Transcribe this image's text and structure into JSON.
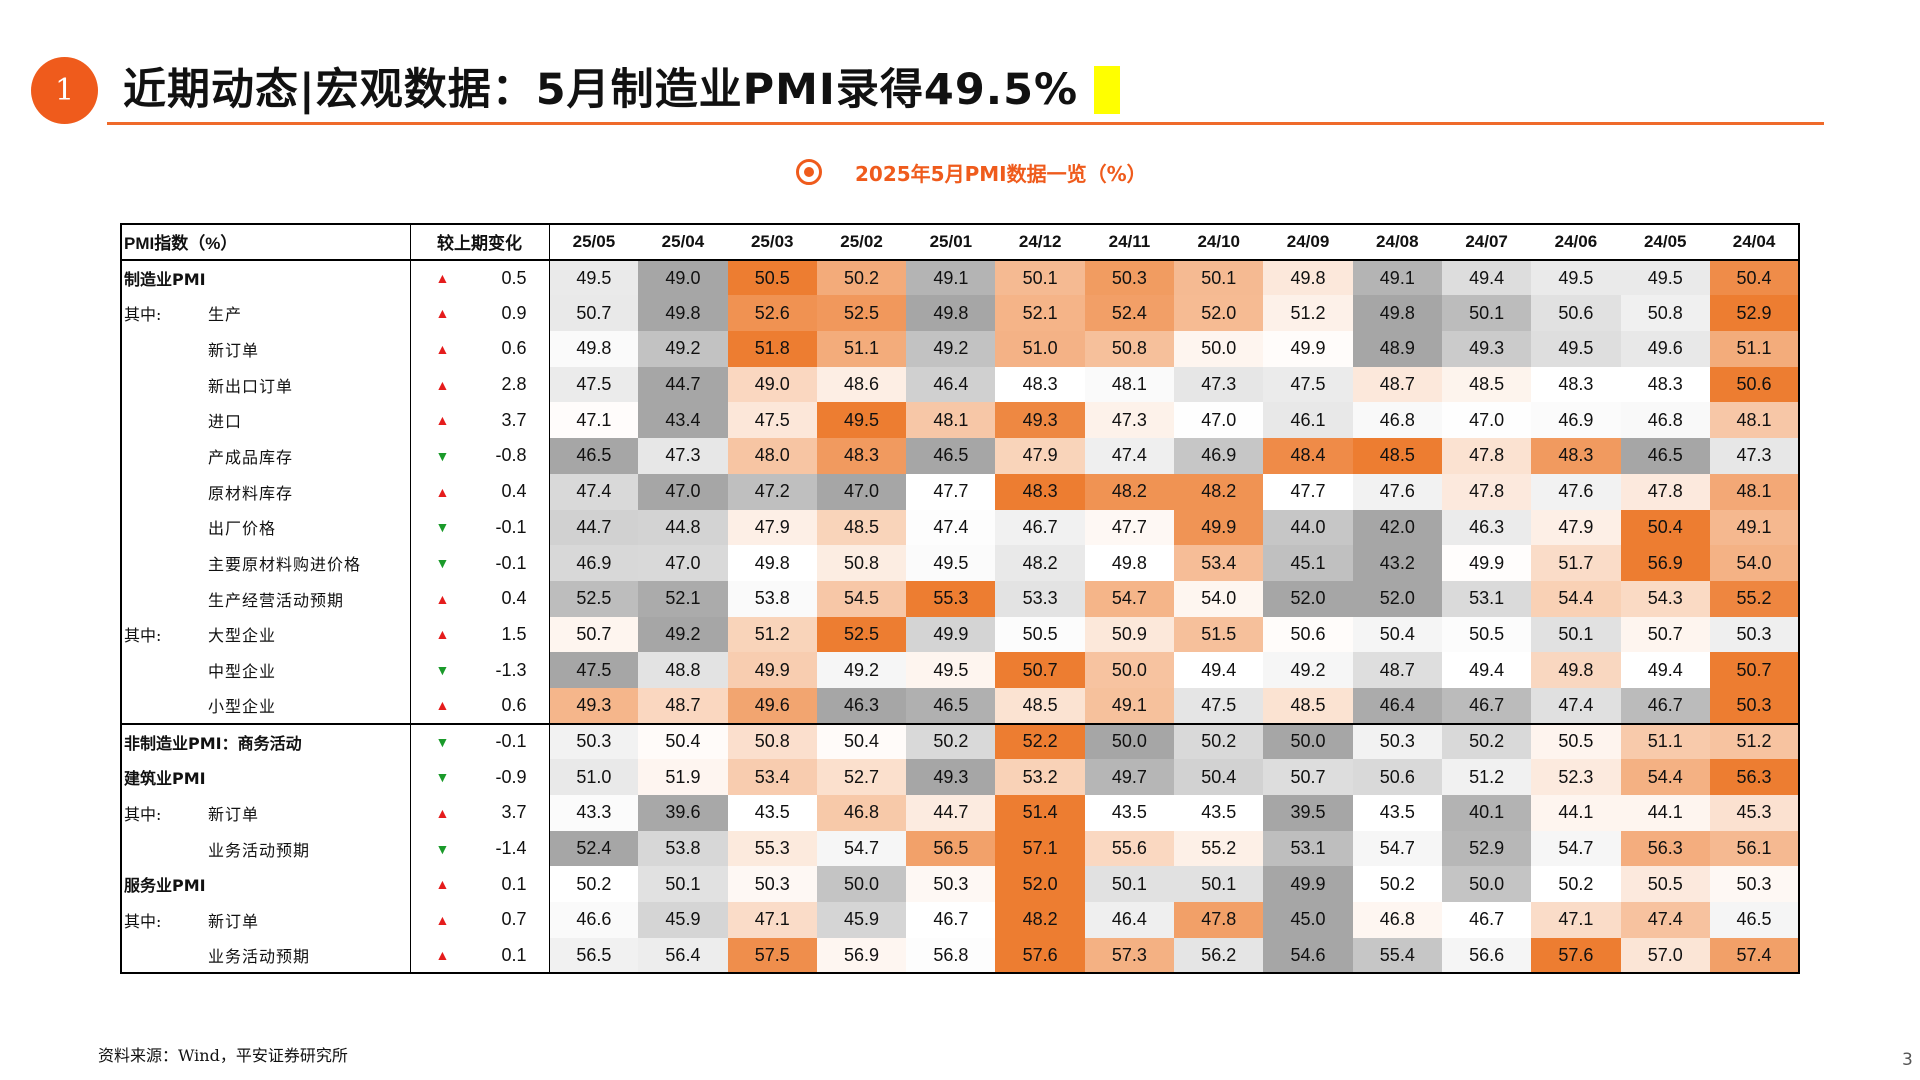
{
  "section_number": "1",
  "title": "近期动态|宏观数据：5月制造业PMI录得49.5%",
  "subtitle": "2025年5月PMI数据一览（%）",
  "table": {
    "header_label": "PMI指数（%）",
    "change_label": "较上期变化",
    "months": [
      "25/05",
      "25/04",
      "25/03",
      "25/02",
      "25/01",
      "24/12",
      "24/11",
      "24/10",
      "24/09",
      "24/08",
      "24/07",
      "24/06",
      "24/05",
      "24/04"
    ],
    "rows": [
      {
        "prefix": "",
        "label": "制造业PMI",
        "bold": true,
        "section_top": false,
        "dir": "up",
        "change": "0.5",
        "values": [
          "49.5",
          "49.0",
          "50.5",
          "50.2",
          "49.1",
          "50.1",
          "50.3",
          "50.1",
          "49.8",
          "49.1",
          "49.4",
          "49.5",
          "49.5",
          "50.4"
        ]
      },
      {
        "prefix": "其中:",
        "label": "生产",
        "bold": false,
        "section_top": false,
        "dir": "up",
        "change": "0.9",
        "values": [
          "50.7",
          "49.8",
          "52.6",
          "52.5",
          "49.8",
          "52.1",
          "52.4",
          "52.0",
          "51.2",
          "49.8",
          "50.1",
          "50.6",
          "50.8",
          "52.9"
        ]
      },
      {
        "prefix": "",
        "label": "新订单",
        "bold": false,
        "section_top": false,
        "dir": "up",
        "change": "0.6",
        "values": [
          "49.8",
          "49.2",
          "51.8",
          "51.1",
          "49.2",
          "51.0",
          "50.8",
          "50.0",
          "49.9",
          "48.9",
          "49.3",
          "49.5",
          "49.6",
          "51.1"
        ]
      },
      {
        "prefix": "",
        "label": "新出口订单",
        "bold": false,
        "section_top": false,
        "dir": "up",
        "change": "2.8",
        "values": [
          "47.5",
          "44.7",
          "49.0",
          "48.6",
          "46.4",
          "48.3",
          "48.1",
          "47.3",
          "47.5",
          "48.7",
          "48.5",
          "48.3",
          "48.3",
          "50.6"
        ]
      },
      {
        "prefix": "",
        "label": "进口",
        "bold": false,
        "section_top": false,
        "dir": "up",
        "change": "3.7",
        "values": [
          "47.1",
          "43.4",
          "47.5",
          "49.5",
          "48.1",
          "49.3",
          "47.3",
          "47.0",
          "46.1",
          "46.8",
          "47.0",
          "46.9",
          "46.8",
          "48.1"
        ]
      },
      {
        "prefix": "",
        "label": "产成品库存",
        "bold": false,
        "section_top": false,
        "dir": "down",
        "change": "-0.8",
        "values": [
          "46.5",
          "47.3",
          "48.0",
          "48.3",
          "46.5",
          "47.9",
          "47.4",
          "46.9",
          "48.4",
          "48.5",
          "47.8",
          "48.3",
          "46.5",
          "47.3"
        ]
      },
      {
        "prefix": "",
        "label": "原材料库存",
        "bold": false,
        "section_top": false,
        "dir": "up",
        "change": "0.4",
        "values": [
          "47.4",
          "47.0",
          "47.2",
          "47.0",
          "47.7",
          "48.3",
          "48.2",
          "48.2",
          "47.7",
          "47.6",
          "47.8",
          "47.6",
          "47.8",
          "48.1"
        ]
      },
      {
        "prefix": "",
        "label": "出厂价格",
        "bold": false,
        "section_top": false,
        "dir": "down",
        "change": "-0.1",
        "values": [
          "44.7",
          "44.8",
          "47.9",
          "48.5",
          "47.4",
          "46.7",
          "47.7",
          "49.9",
          "44.0",
          "42.0",
          "46.3",
          "47.9",
          "50.4",
          "49.1"
        ]
      },
      {
        "prefix": "",
        "label": "主要原材料购进价格",
        "bold": false,
        "section_top": false,
        "dir": "down",
        "change": "-0.1",
        "values": [
          "46.9",
          "47.0",
          "49.8",
          "50.8",
          "49.5",
          "48.2",
          "49.8",
          "53.4",
          "45.1",
          "43.2",
          "49.9",
          "51.7",
          "56.9",
          "54.0"
        ]
      },
      {
        "prefix": "",
        "label": "生产经营活动预期",
        "bold": false,
        "section_top": false,
        "dir": "up",
        "change": "0.4",
        "values": [
          "52.5",
          "52.1",
          "53.8",
          "54.5",
          "55.3",
          "53.3",
          "54.7",
          "54.0",
          "52.0",
          "52.0",
          "53.1",
          "54.4",
          "54.3",
          "55.2"
        ]
      },
      {
        "prefix": "其中:",
        "label": "大型企业",
        "bold": false,
        "section_top": false,
        "dir": "up",
        "change": "1.5",
        "values": [
          "50.7",
          "49.2",
          "51.2",
          "52.5",
          "49.9",
          "50.5",
          "50.9",
          "51.5",
          "50.6",
          "50.4",
          "50.5",
          "50.1",
          "50.7",
          "50.3"
        ]
      },
      {
        "prefix": "",
        "label": "中型企业",
        "bold": false,
        "section_top": false,
        "dir": "down",
        "change": "-1.3",
        "values": [
          "47.5",
          "48.8",
          "49.9",
          "49.2",
          "49.5",
          "50.7",
          "50.0",
          "49.4",
          "49.2",
          "48.7",
          "49.4",
          "49.8",
          "49.4",
          "50.7"
        ]
      },
      {
        "prefix": "",
        "label": "小型企业",
        "bold": false,
        "section_top": false,
        "dir": "up",
        "change": "0.6",
        "values": [
          "49.3",
          "48.7",
          "49.6",
          "46.3",
          "46.5",
          "48.5",
          "49.1",
          "47.5",
          "48.5",
          "46.4",
          "46.7",
          "47.4",
          "46.7",
          "50.3"
        ]
      },
      {
        "prefix": "",
        "label": "非制造业PMI：商务活动",
        "bold": true,
        "section_top": true,
        "dir": "down",
        "change": "-0.1",
        "values": [
          "50.3",
          "50.4",
          "50.8",
          "50.4",
          "50.2",
          "52.2",
          "50.0",
          "50.2",
          "50.0",
          "50.3",
          "50.2",
          "50.5",
          "51.1",
          "51.2"
        ]
      },
      {
        "prefix": "",
        "label": "建筑业PMI",
        "bold": true,
        "section_top": false,
        "dir": "down",
        "change": "-0.9",
        "values": [
          "51.0",
          "51.9",
          "53.4",
          "52.7",
          "49.3",
          "53.2",
          "49.7",
          "50.4",
          "50.7",
          "50.6",
          "51.2",
          "52.3",
          "54.4",
          "56.3"
        ]
      },
      {
        "prefix": "其中:",
        "label": "新订单",
        "bold": false,
        "section_top": false,
        "dir": "up",
        "change": "3.7",
        "values": [
          "43.3",
          "39.6",
          "43.5",
          "46.8",
          "44.7",
          "51.4",
          "43.5",
          "43.5",
          "39.5",
          "43.5",
          "40.1",
          "44.1",
          "44.1",
          "45.3"
        ]
      },
      {
        "prefix": "",
        "label": "业务活动预期",
        "bold": false,
        "section_top": false,
        "dir": "down",
        "change": "-1.4",
        "values": [
          "52.4",
          "53.8",
          "55.3",
          "54.7",
          "56.5",
          "57.1",
          "55.6",
          "55.2",
          "53.1",
          "54.7",
          "52.9",
          "54.7",
          "56.3",
          "56.1"
        ]
      },
      {
        "prefix": "",
        "label": "服务业PMI",
        "bold": true,
        "section_top": false,
        "dir": "up",
        "change": "0.1",
        "values": [
          "50.2",
          "50.1",
          "50.3",
          "50.0",
          "50.3",
          "52.0",
          "50.1",
          "50.1",
          "49.9",
          "50.2",
          "50.0",
          "50.2",
          "50.5",
          "50.3"
        ]
      },
      {
        "prefix": "其中:",
        "label": "新订单",
        "bold": false,
        "section_top": false,
        "dir": "up",
        "change": "0.7",
        "values": [
          "46.6",
          "45.9",
          "47.1",
          "45.9",
          "46.7",
          "48.2",
          "46.4",
          "47.8",
          "45.0",
          "46.8",
          "46.7",
          "47.1",
          "47.4",
          "46.5"
        ]
      },
      {
        "prefix": "",
        "label": "业务活动预期",
        "bold": false,
        "section_top": false,
        "dir": "up",
        "change": "0.1",
        "values": [
          "56.5",
          "56.4",
          "57.5",
          "56.9",
          "56.8",
          "57.6",
          "57.3",
          "56.2",
          "54.6",
          "55.4",
          "56.6",
          "57.6",
          "57.0",
          "57.4"
        ]
      }
    ]
  },
  "colors": {
    "accent": "#ef5b1c",
    "heat_high": "#ed7d31",
    "heat_mid": "#ffffff",
    "heat_low": "#a6a6a6",
    "arrow_up": "#e51c1c",
    "arrow_down": "#1a9a2a"
  },
  "source": "资料来源：Wind，平安证券研究所",
  "page_number": "3"
}
